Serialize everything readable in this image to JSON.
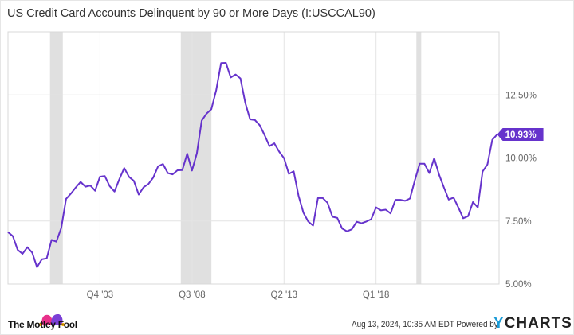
{
  "title": "US Credit Card Accounts Delinquent by 90 or More Days (I:USCCAL90)",
  "chart_data": {
    "type": "line",
    "title": "US Credit Card Accounts Delinquent by 90 or More Days (I:USCCAL90)",
    "xlabel": "",
    "ylabel": "",
    "ylim": [
      5,
      15
    ],
    "xlim": [
      "Q1 1999",
      "Q2 2024"
    ],
    "yticks": [
      "5.00%",
      "7.50%",
      "10.00%",
      "12.50%"
    ],
    "ytick_values": [
      5,
      7.5,
      10,
      12.5
    ],
    "xticks": [
      "Q4 '03",
      "Q3 '08",
      "Q2 '13",
      "Q1 '18"
    ],
    "xtick_values": [
      2003.75,
      2008.5,
      2013.25,
      2018.0
    ],
    "grid": true,
    "y_axis_side": "right",
    "line_color": "#6633cc",
    "recession_color": "#e0e0e0",
    "recessions": [
      [
        2001.17,
        2001.83
      ],
      [
        2007.92,
        2009.5
      ],
      [
        2020.08,
        2020.33
      ]
    ],
    "x_start_year": 1999.0,
    "x_step": "quarterly",
    "last_value_label": "10.93%",
    "series": [
      {
        "values": [
          7.06,
          6.9,
          6.36,
          6.2,
          6.46,
          6.25,
          5.67,
          5.98,
          6.02,
          6.75,
          6.68,
          7.22,
          8.38,
          8.59,
          8.83,
          9.05,
          8.86,
          8.91,
          8.7,
          9.26,
          9.28,
          8.88,
          8.67,
          9.16,
          9.6,
          9.25,
          9.09,
          8.55,
          8.84,
          8.97,
          9.22,
          9.67,
          9.76,
          9.4,
          9.35,
          9.51,
          9.52,
          10.17,
          9.5,
          10.18,
          11.48,
          11.76,
          11.93,
          12.69,
          13.76,
          13.77,
          13.19,
          13.31,
          13.15,
          12.18,
          11.53,
          11.5,
          11.29,
          10.9,
          10.47,
          10.58,
          10.25,
          9.99,
          9.37,
          9.47,
          8.5,
          7.83,
          7.48,
          7.32,
          8.41,
          8.41,
          8.22,
          7.67,
          7.62,
          7.2,
          7.09,
          7.17,
          7.47,
          7.41,
          7.48,
          7.57,
          8.04,
          7.92,
          7.95,
          7.8,
          8.34,
          8.34,
          8.3,
          8.39,
          9.11,
          9.77,
          9.77,
          9.4,
          9.99,
          9.34,
          8.84,
          8.35,
          8.43,
          8.03,
          7.61,
          7.69,
          8.25,
          8.04,
          9.46,
          9.74,
          10.72,
          10.93
        ]
      }
    ]
  },
  "footer": {
    "brand": "The Motley Fool",
    "timestamp": "Aug 13, 2024, 10:35 AM EDT",
    "powered_by": "Powered by",
    "ycharts_y": "Y",
    "ycharts_rest": "CHARTS"
  }
}
